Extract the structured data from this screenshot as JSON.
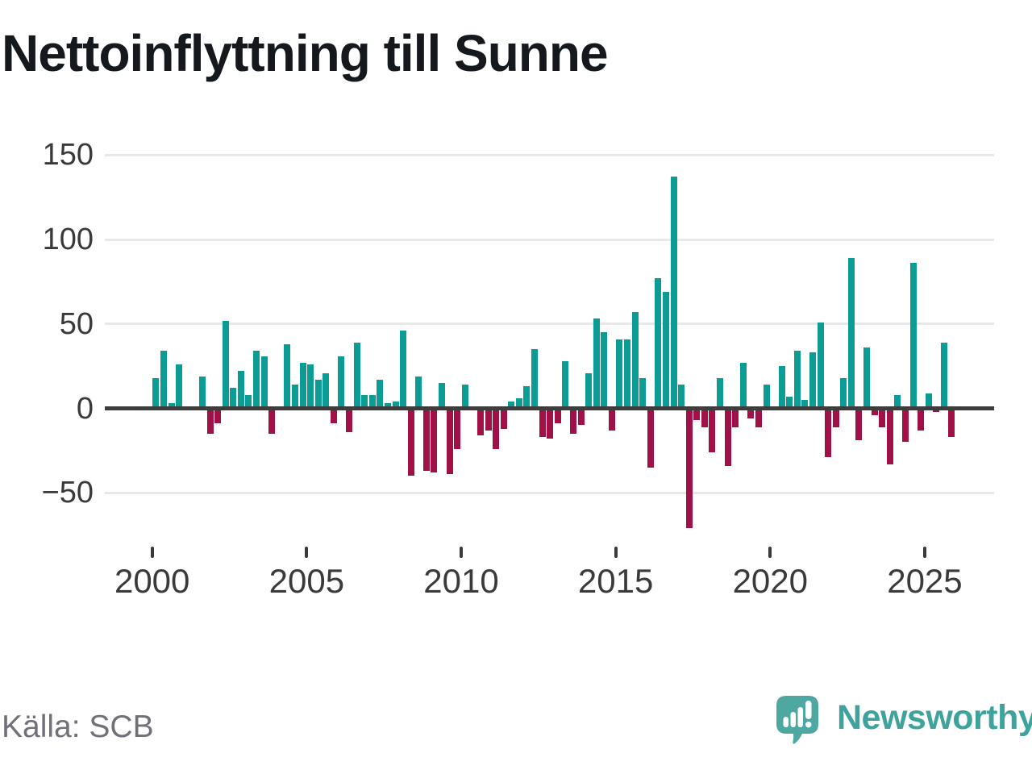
{
  "title": "Nettoinflyttning till Sunne",
  "footer": {
    "source": "Källa: SCB",
    "brand_name": "Newsworthy"
  },
  "colors": {
    "positive_bar": "#0b9d95",
    "negative_bar": "#a21048",
    "axis": "#3d3d3d",
    "grid": "#e7e7e7",
    "title_text": "#15191d",
    "tick_text": "#3a3a3a",
    "source_text": "#70707a",
    "brand_teal": "#3da39c",
    "logo_bubble": "#4fa7a1"
  },
  "chart_data": {
    "type": "bar",
    "title": "Nettoinflyttning till Sunne",
    "x_unit": "quarter",
    "start": "2000-Q1",
    "end": "2025-Q4",
    "points_per_year": 4,
    "start_year": 2000,
    "grid": "horizontal",
    "legend": "none",
    "x_tick_labels": [
      "2000",
      "2005",
      "2010",
      "2015",
      "2020",
      "2025"
    ],
    "y_ticks": [
      150,
      100,
      50,
      0,
      -50
    ],
    "y_tick_labels": [
      "150",
      "100",
      "50",
      "0",
      "−50"
    ],
    "ylim": [
      -75,
      160
    ],
    "series": [
      {
        "name": "Nettoinflyttning",
        "values": [
          18,
          34,
          3,
          26,
          0,
          0,
          19,
          -15,
          -9,
          52,
          12,
          22,
          8,
          34,
          31,
          -15,
          0,
          38,
          14,
          27,
          26,
          17,
          21,
          -9,
          31,
          -14,
          39,
          8,
          8,
          17,
          3,
          4,
          46,
          -40,
          19,
          -37,
          -38,
          15,
          -39,
          -24,
          14,
          0,
          -16,
          -13,
          -24,
          -12,
          4,
          6,
          13,
          35,
          -17,
          -18,
          -9,
          28,
          -15,
          -10,
          21,
          53,
          45,
          -13,
          41,
          41,
          57,
          18,
          -35,
          77,
          69,
          137,
          14,
          -71,
          -7,
          -11,
          -26,
          18,
          -34,
          -11,
          27,
          -6,
          -11,
          14,
          0,
          25,
          7,
          34,
          5,
          33,
          51,
          -29,
          -11,
          18,
          89,
          -19,
          36,
          -4,
          -11,
          -33,
          8,
          -20,
          86,
          -13,
          9,
          -2,
          39,
          -17
        ]
      }
    ]
  }
}
